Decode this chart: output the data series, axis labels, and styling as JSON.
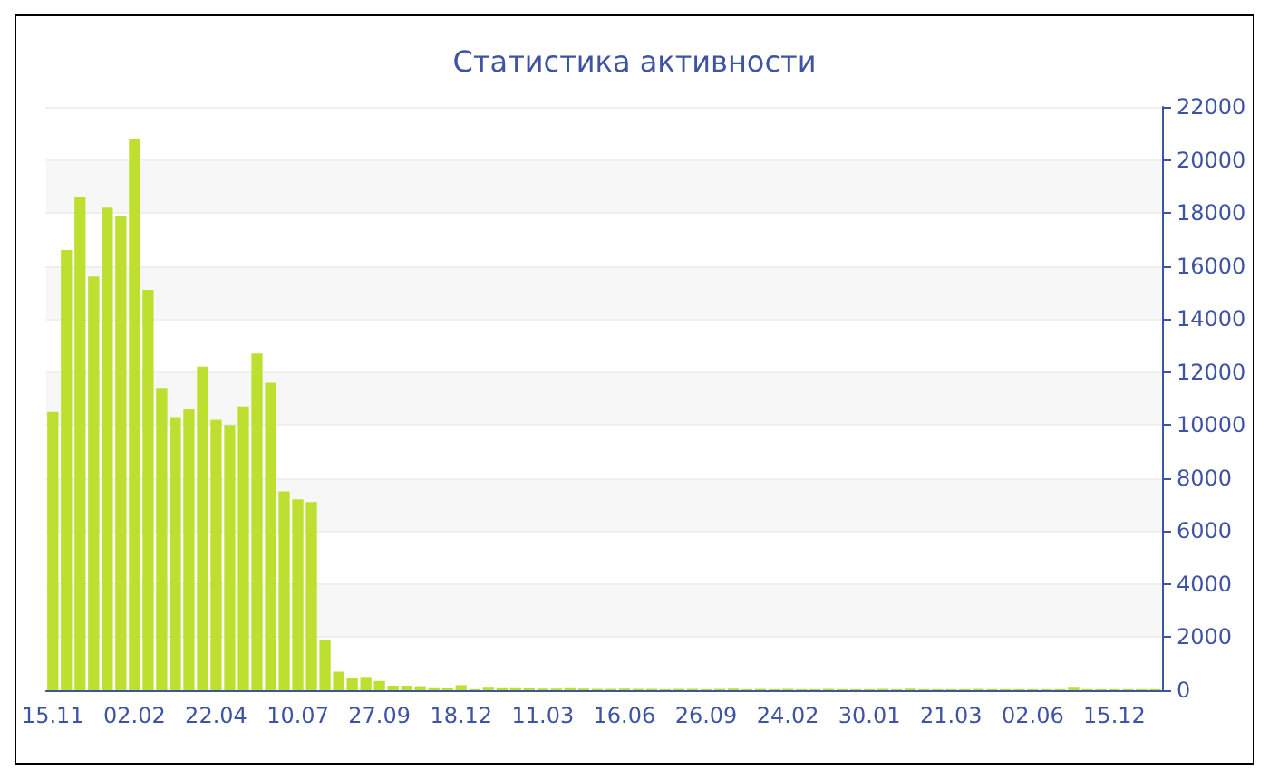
{
  "chart_data": {
    "type": "bar",
    "title": "Статистика активности",
    "categories": [
      "15.11",
      null,
      null,
      null,
      null,
      null,
      "02.02",
      null,
      null,
      null,
      null,
      null,
      "22.04",
      null,
      null,
      null,
      null,
      null,
      "10.07",
      null,
      null,
      null,
      null,
      null,
      "27.09",
      null,
      null,
      null,
      null,
      null,
      "18.12",
      null,
      null,
      null,
      null,
      null,
      "11.03",
      null,
      null,
      null,
      null,
      null,
      "16.06",
      null,
      null,
      null,
      null,
      null,
      "26.09",
      null,
      null,
      null,
      null,
      null,
      "24.02",
      null,
      null,
      null,
      null,
      null,
      "30.01",
      null,
      null,
      null,
      null,
      null,
      "21.03",
      null,
      null,
      null,
      null,
      null,
      "02.06",
      null,
      null,
      null,
      null,
      null,
      "15.12",
      null,
      null,
      null
    ],
    "values": [
      10500,
      16600,
      18600,
      15600,
      18200,
      17900,
      20800,
      15100,
      11400,
      10300,
      10600,
      12200,
      10200,
      10000,
      10700,
      12700,
      11600,
      7500,
      7200,
      7100,
      1900,
      700,
      450,
      500,
      350,
      170,
      170,
      150,
      110,
      100,
      190,
      40,
      130,
      110,
      110,
      90,
      60,
      60,
      110,
      60,
      50,
      50,
      60,
      50,
      50,
      40,
      50,
      50,
      40,
      50,
      60,
      40,
      50,
      40,
      50,
      40,
      40,
      50,
      40,
      40,
      40,
      50,
      40,
      60,
      40,
      40,
      40,
      40,
      50,
      40,
      40,
      40,
      40,
      40,
      40,
      130,
      40,
      40,
      40,
      40,
      40,
      40
    ],
    "color": "#bde030",
    "ylim": [
      0,
      22000
    ],
    "yticks": [
      0,
      2000,
      4000,
      6000,
      8000,
      10000,
      12000,
      14000,
      16000,
      18000,
      20000,
      22000
    ],
    "grid": "y"
  }
}
